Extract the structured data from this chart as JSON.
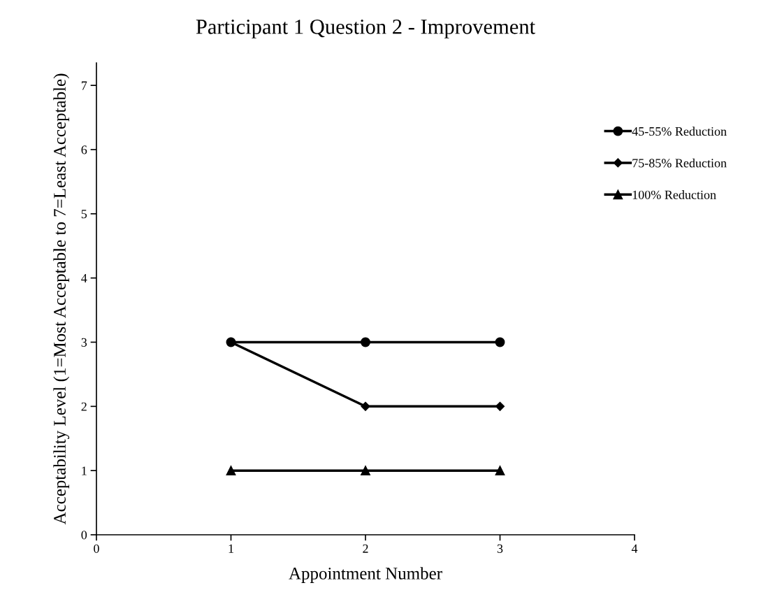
{
  "chart_data": {
    "type": "line",
    "title": "Participant 1 Question 2 - Improvement",
    "xlabel": "Appointment Number",
    "ylabel": "Acceptability Level (1=Most Acceptable to 7=Least Acceptable)",
    "x": [
      1,
      2,
      3
    ],
    "series": [
      {
        "name": "45-55% Reduction",
        "color": "#000000",
        "marker": "circle",
        "values": [
          3,
          3,
          3
        ]
      },
      {
        "name": "75-85% Reduction",
        "color": "#000000",
        "marker": "diamond",
        "values": [
          3,
          2,
          2
        ]
      },
      {
        "name": "100% Reduction",
        "color": "#000000",
        "marker": "triangle",
        "values": [
          1,
          1,
          1
        ]
      }
    ],
    "xlim": [
      0,
      4
    ],
    "xticks": [
      0,
      1,
      2,
      3,
      4
    ],
    "ylim": [
      0,
      7.35
    ],
    "yticks": [
      0,
      1,
      2,
      3,
      4,
      5,
      6,
      7
    ],
    "grid": false,
    "legend": "top right",
    "line_style": "solid"
  }
}
